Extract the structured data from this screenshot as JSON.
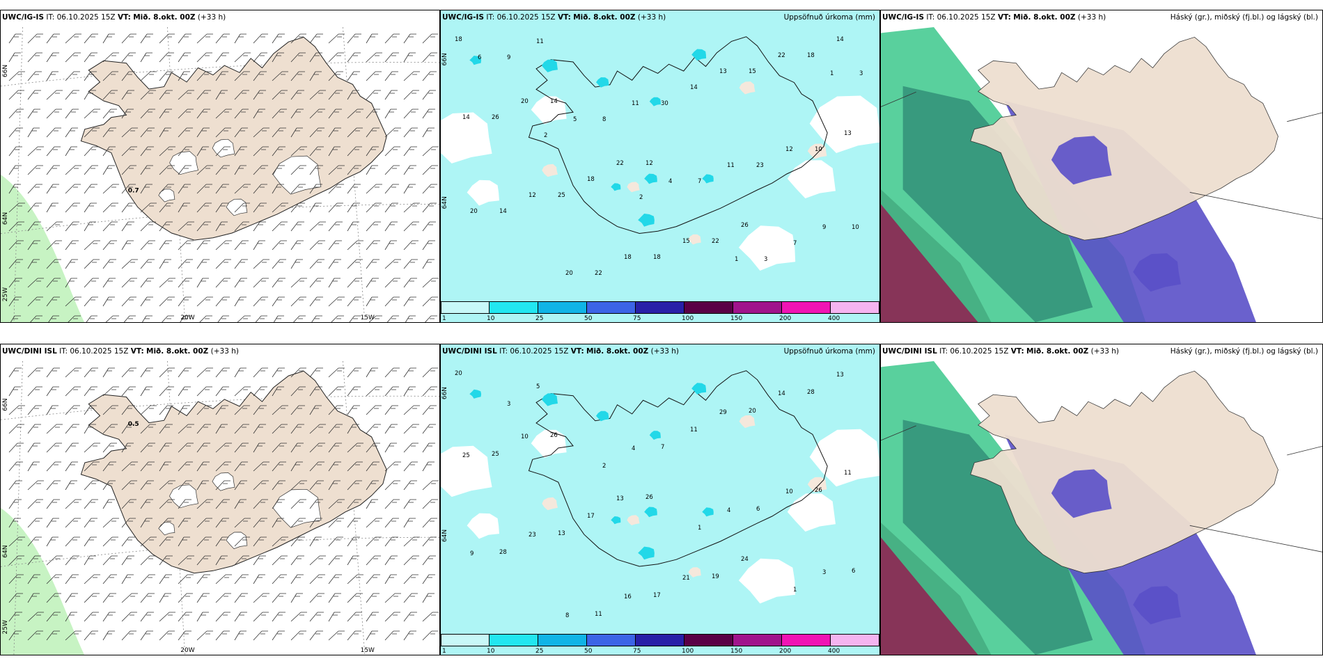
{
  "rows": [
    {
      "wind": {
        "model": "UWC/IG-IS",
        "it_label": "IT:",
        "it": "06.10.2025 15Z",
        "vt_label": "VT:",
        "vt": "Mið. 8.okt. 00Z",
        "lead": "(+33 h)",
        "value_label": "0.7",
        "grid_labels": {
          "lat_top": "66N",
          "lat_mid": "64N",
          "lon_left": "25W",
          "lon_mid": "20W",
          "lon_right": "15W"
        }
      },
      "precip": {
        "model": "UWC/IG-IS",
        "it_label": "IT:",
        "it": "06.10.2025 15Z",
        "vt_label": "VT:",
        "vt": "Mið. 8.okt. 00Z",
        "lead": "(+33 h)",
        "right_title": "Uppsöfnuð úrkoma (mm)",
        "grid_labels": {
          "lat_top": "66N",
          "lat_mid": "64N"
        },
        "numbers": [
          "18",
          "14",
          "12",
          "26",
          "14",
          "20",
          "22",
          "22",
          "18",
          "26",
          "18",
          "15",
          "22",
          "14",
          "25",
          "18",
          "15",
          "13",
          "12",
          "18",
          "13",
          "10",
          "14",
          "22",
          "14",
          "12",
          "20",
          "20",
          "30",
          "23",
          "10",
          "11",
          "11",
          "11",
          "9",
          "9",
          "8",
          "7",
          "7",
          "6",
          "5",
          "4",
          "3",
          "3",
          "2",
          "2",
          "1",
          "1"
        ]
      },
      "cloud": {
        "model": "UWC/IG-IS",
        "it_label": "IT:",
        "it": "06.10.2025 15Z",
        "vt_label": "VT:",
        "vt": "Mið. 8.okt. 00Z",
        "lead": "(+33 h)",
        "right_title": "Háský (gr.), miðský (fj.bl.) og lágský (bl.)"
      }
    },
    {
      "wind": {
        "model": "UWC/DINI ISL",
        "it_label": "IT:",
        "it": "06.10.2025 15Z",
        "vt_label": "VT:",
        "vt": "Mið. 8.okt. 00Z",
        "lead": "(+33 h)",
        "value_label": "0.5",
        "grid_labels": {
          "lat_top": "66N",
          "lat_mid": "64N",
          "lon_left": "25W",
          "lon_mid": "20W",
          "lon_right": "15W"
        }
      },
      "precip": {
        "model": "UWC/DINI ISL",
        "it_label": "IT:",
        "it": "06.10.2025 15Z",
        "vt_label": "VT:",
        "vt": "Mið. 8.okt. 00Z",
        "lead": "(+33 h)",
        "right_title": "Uppsöfnuð úrkoma (mm)",
        "grid_labels": {
          "lat_top": "66N",
          "lat_mid": "64N"
        },
        "numbers": [
          "20",
          "26",
          "26",
          "24",
          "13",
          "10",
          "13",
          "19",
          "28",
          "25",
          "17",
          "21",
          "14",
          "25",
          "13",
          "17",
          "20",
          "11",
          "23",
          "16",
          "29",
          "26",
          "28",
          "11",
          "11",
          "10",
          "9",
          "8",
          "7",
          "6",
          "6",
          "5",
          "4",
          "4",
          "3",
          "3",
          "2",
          "1",
          "1"
        ]
      },
      "cloud": {
        "model": "UWC/DINI ISL",
        "it_label": "IT:",
        "it": "06.10.2025 15Z",
        "vt_label": "VT:",
        "vt": "Mið. 8.okt. 00Z",
        "lead": "(+33 h)",
        "right_title": "Háský (gr.), miðský (fj.bl.) og lágský (bl.)"
      }
    }
  ],
  "colorbar": {
    "ticks": [
      "1",
      "10",
      "25",
      "50",
      "75",
      "100",
      "150",
      "200",
      "400"
    ],
    "colors": [
      "#c8f8f8",
      "#22e6f0",
      "#10b4e6",
      "#3c64e6",
      "#2820a8",
      "#5a0046",
      "#a0148c",
      "#f014b4",
      "#f5b4f0"
    ]
  },
  "colors": {
    "land": "#eedfd0",
    "precip_bg": "#aef5f5",
    "wind_green": "#b9f0b4",
    "cloud_purple": "#5a50c8",
    "cloud_green": "#3cc88c",
    "cloud_dark": "#7a1e46"
  }
}
